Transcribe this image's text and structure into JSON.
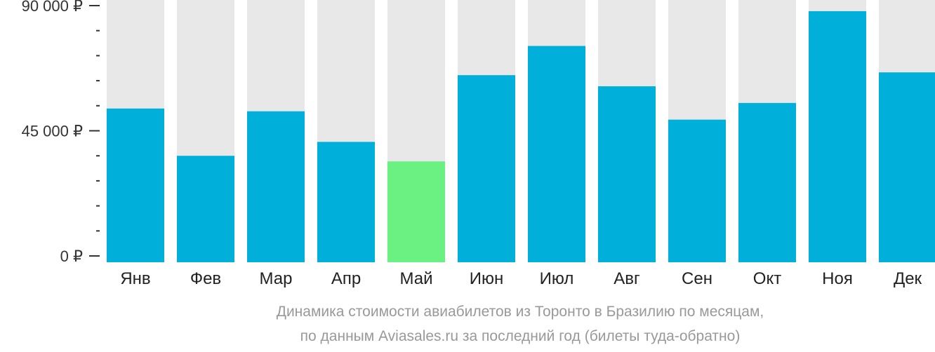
{
  "chart_data": {
    "type": "bar",
    "categories": [
      "Янв",
      "Фев",
      "Мар",
      "Апр",
      "Май",
      "Июн",
      "Июл",
      "Авг",
      "Сен",
      "Окт",
      "Ноя",
      "Дек"
    ],
    "values": [
      53000,
      36000,
      52000,
      41000,
      34000,
      65000,
      75500,
      61000,
      49000,
      55000,
      88000,
      66000
    ],
    "highlight_index": 4,
    "ylim": [
      0,
      95000
    ],
    "y_tick_labels": [
      {
        "value": 0,
        "label": "0 ₽"
      },
      {
        "value": 45000,
        "label": "45 000 ₽"
      },
      {
        "value": 90000,
        "label": "90 000 ₽"
      }
    ],
    "minor_tick_step": 9000,
    "colors": {
      "bar": "#00b0db",
      "highlight": "#6bf182",
      "background_bar": "#e8e8e8"
    },
    "caption_lines": [
      "Динамика стоимости авиабилетов из Торонто в Бразилию по месяцам,",
      "по данным Aviasales.ru за последний год (билеты туда-обратно)"
    ]
  }
}
